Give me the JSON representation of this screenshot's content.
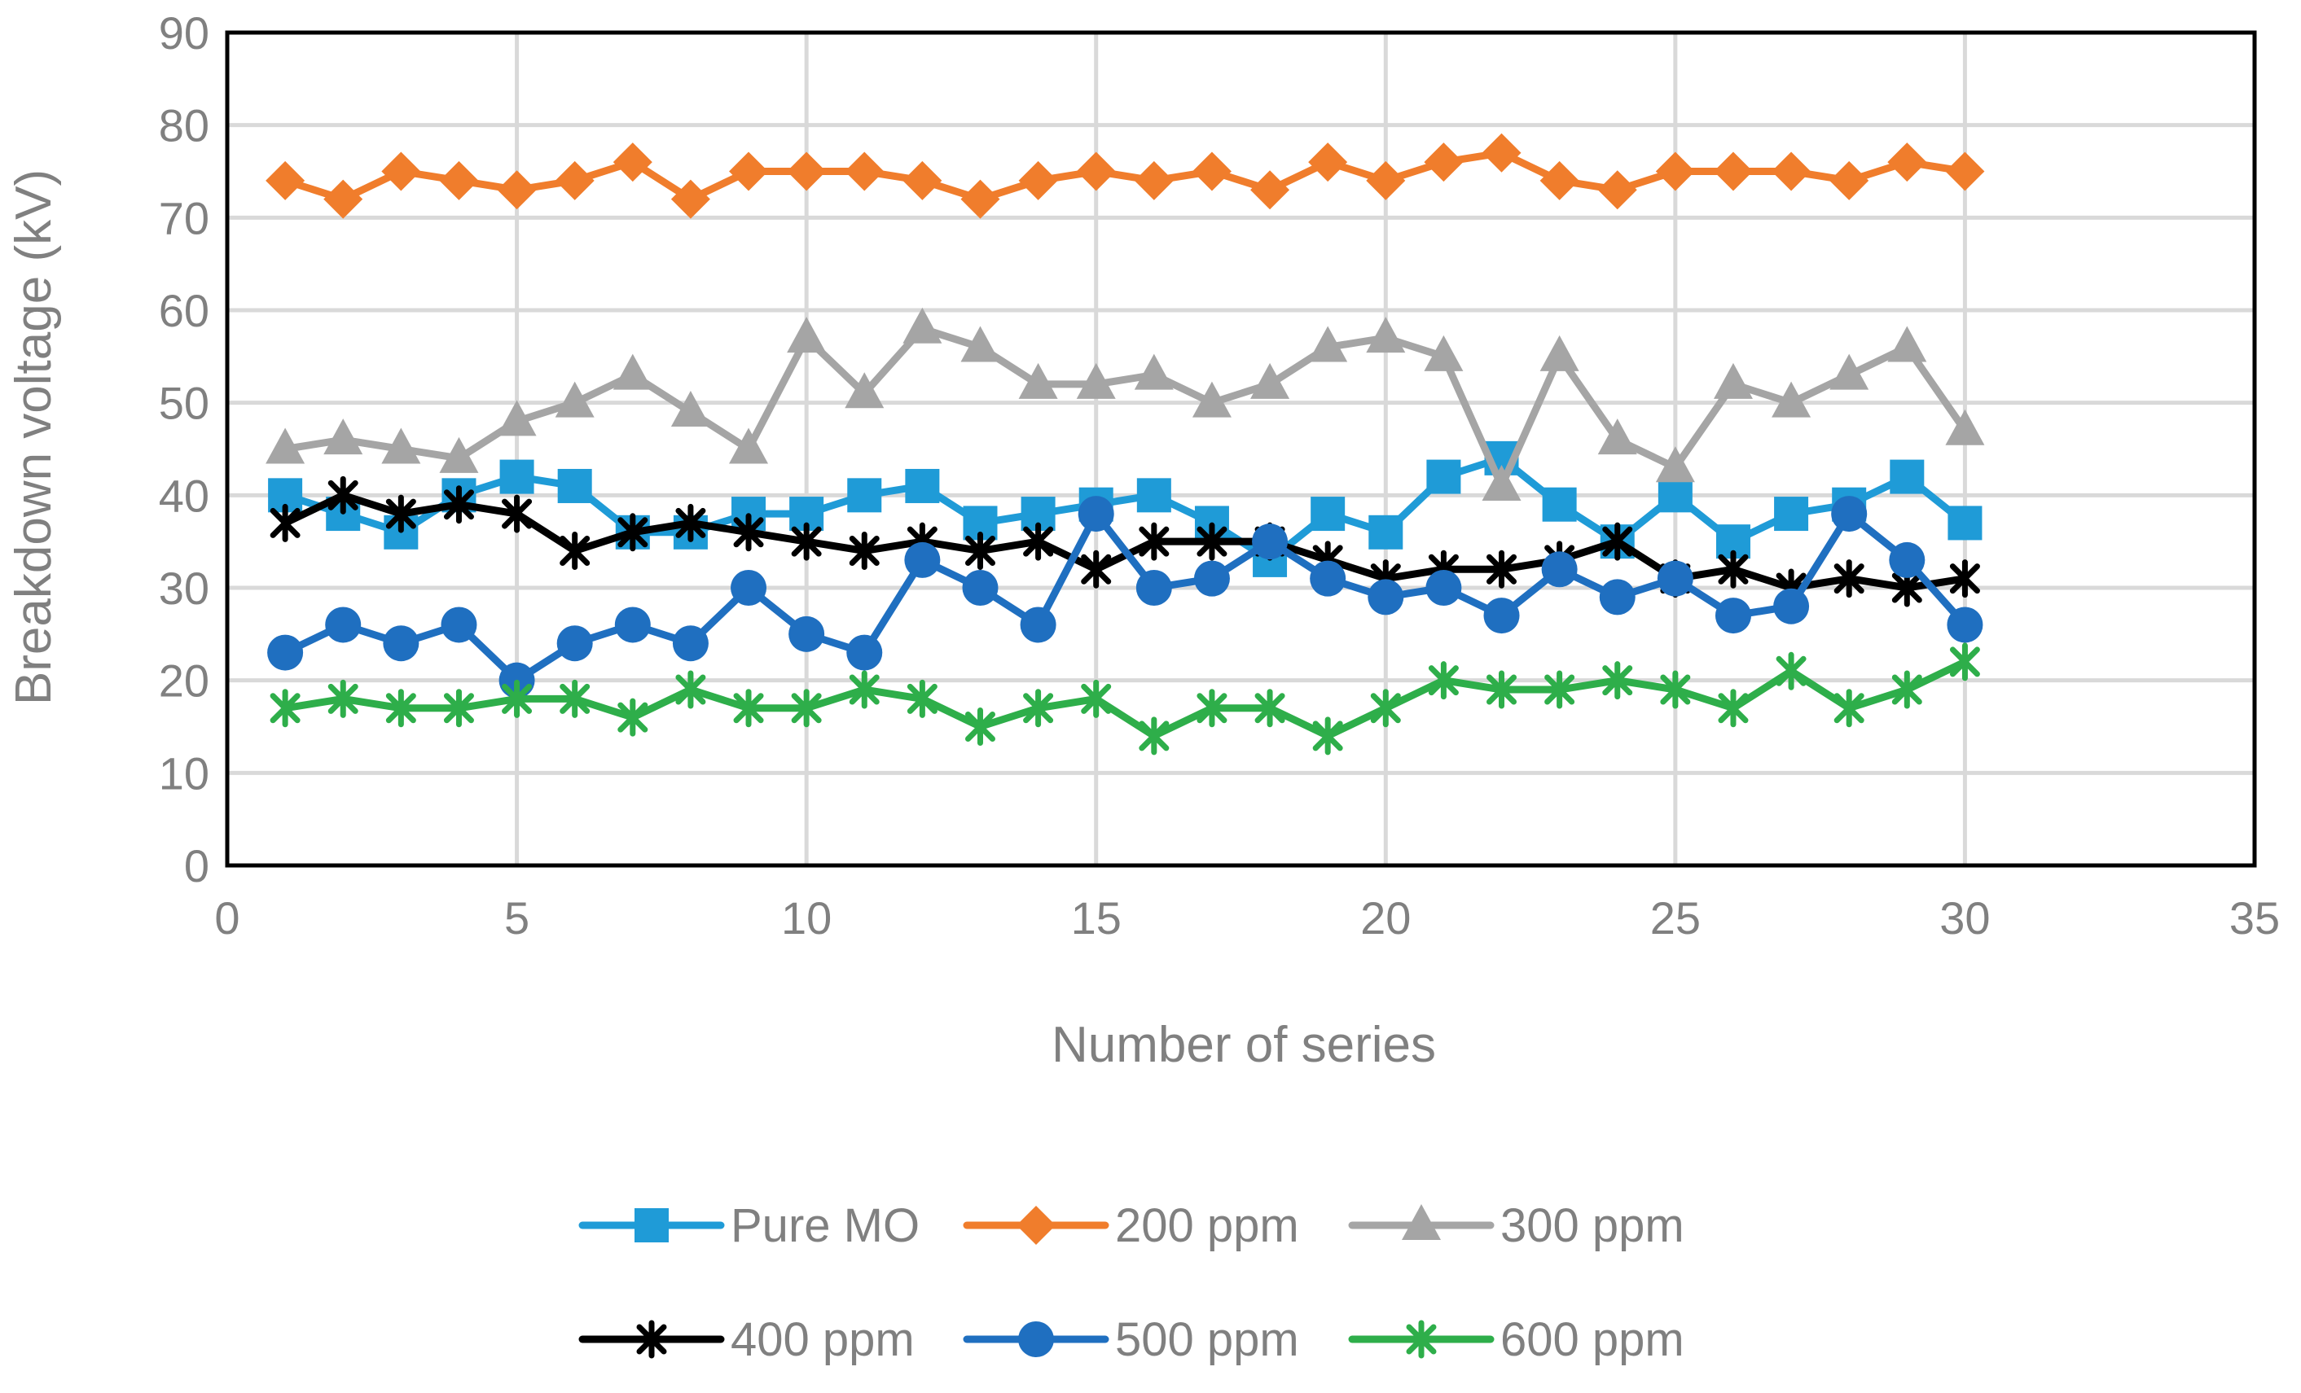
{
  "chart_data": {
    "type": "line",
    "title": "",
    "xlabel": "Number of series",
    "ylabel": "Breakdown voltage (kV)",
    "xlim": [
      0,
      35
    ],
    "ylim": [
      0,
      90
    ],
    "xticks": [
      "0",
      "5",
      "10",
      "15",
      "20",
      "25",
      "30",
      "35"
    ],
    "yticks": [
      "0",
      "10",
      "20",
      "30",
      "40",
      "50",
      "60",
      "70",
      "80",
      "90"
    ],
    "grid": true,
    "legend_position": "bottom",
    "x": [
      1,
      2,
      3,
      4,
      5,
      6,
      7,
      8,
      9,
      10,
      11,
      12,
      13,
      14,
      15,
      16,
      17,
      18,
      19,
      20,
      21,
      22,
      23,
      24,
      25,
      26,
      27,
      28,
      29,
      30
    ],
    "series": [
      {
        "name": "Pure MO",
        "color": "#1f9bd7",
        "marker": "square",
        "values": [
          40,
          38,
          36,
          40,
          42,
          41,
          36,
          36,
          38,
          38,
          40,
          41,
          37,
          38,
          39,
          40,
          37,
          33,
          38,
          36,
          42,
          44,
          39,
          35,
          40,
          35,
          38,
          39,
          42,
          37
        ]
      },
      {
        "name": "200 ppm",
        "color": "#f07d2c",
        "marker": "diamond",
        "values": [
          74,
          72,
          75,
          74,
          73,
          74,
          76,
          72,
          75,
          75,
          75,
          74,
          72,
          74,
          75,
          74,
          75,
          73,
          76,
          74,
          76,
          77,
          74,
          73,
          75,
          75,
          75,
          74,
          76,
          75
        ]
      },
      {
        "name": "300 ppm",
        "color": "#a5a5a5",
        "marker": "triangle",
        "values": [
          45,
          46,
          45,
          44,
          48,
          50,
          53,
          49,
          45,
          57,
          51,
          58,
          56,
          52,
          52,
          53,
          50,
          52,
          56,
          57,
          55,
          41,
          55,
          46,
          43,
          52,
          50,
          53,
          56,
          47
        ]
      },
      {
        "name": "400 ppm",
        "color": "#000000",
        "marker": "star",
        "values": [
          37,
          40,
          38,
          39,
          38,
          34,
          36,
          37,
          36,
          35,
          34,
          35,
          34,
          35,
          32,
          35,
          35,
          35,
          33,
          31,
          32,
          32,
          33,
          35,
          31,
          32,
          30,
          31,
          30,
          31
        ]
      },
      {
        "name": "500 ppm",
        "color": "#1f6fc0",
        "marker": "circle",
        "values": [
          23,
          26,
          24,
          26,
          20,
          24,
          26,
          24,
          30,
          25,
          23,
          33,
          30,
          26,
          38,
          30,
          31,
          35,
          31,
          29,
          30,
          27,
          32,
          29,
          31,
          27,
          28,
          38,
          33,
          26
        ]
      },
      {
        "name": "600 ppm",
        "color": "#2eae4a",
        "marker": "star",
        "values": [
          17,
          18,
          17,
          17,
          18,
          18,
          16,
          19,
          17,
          17,
          19,
          18,
          15,
          17,
          18,
          14,
          17,
          17,
          14,
          17,
          20,
          19,
          19,
          20,
          19,
          17,
          21,
          17,
          19,
          22
        ]
      }
    ]
  }
}
